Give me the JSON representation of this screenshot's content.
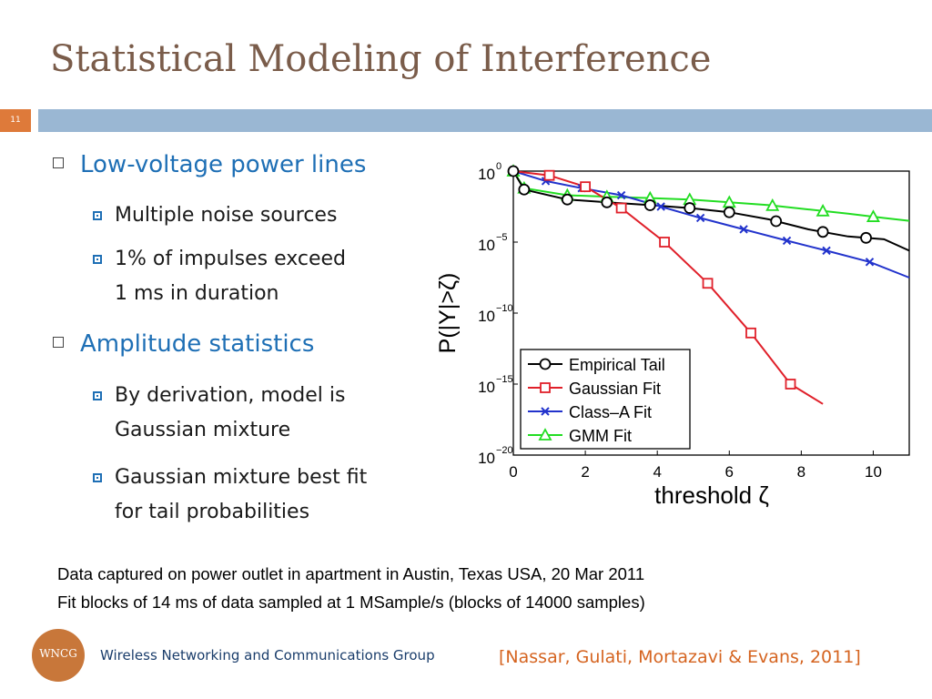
{
  "slide": {
    "title": "Statistical Modeling of Interference",
    "number": "11",
    "bullets": [
      {
        "text": "Low-voltage power lines",
        "sub": [
          "Multiple noise sources",
          "1% of impulses exceed\n1 ms in duration"
        ]
      },
      {
        "text": "Amplitude statistics",
        "sub": [
          "By derivation, model is\nGaussian mixture",
          "Gaussian mixture best fit\nfor tail probabilities"
        ]
      }
    ],
    "note_lines": [
      "Data captured on power outlet in apartment in Austin, Texas USA, 20 Mar 2011",
      "Fit blocks of 14 ms of data sampled at 1 MSample/s (blocks of 14000 samples)"
    ],
    "footer_logo": "WNCG",
    "footer_org": "Wireless Networking and Communications Group",
    "citation": "[Nassar, Gulati, Mortazavi & Evans, 2011]"
  },
  "chart_data": {
    "type": "line",
    "xlabel": "threshold ζ",
    "ylabel": "P(|Y|>ζ)",
    "xlim": [
      0,
      11
    ],
    "ylim_exponent": [
      -20,
      0
    ],
    "y_scale": "log",
    "xticks": [
      "0",
      "2",
      "4",
      "6",
      "8",
      "10"
    ],
    "yticks": [
      {
        "exp": 0,
        "label": "0"
      },
      {
        "exp": -5,
        "label": "−5"
      },
      {
        "exp": -10,
        "label": "−10"
      },
      {
        "exp": -15,
        "label": "−15"
      },
      {
        "exp": -20,
        "label": "−20"
      }
    ],
    "legend_position": "lower-left",
    "series": [
      {
        "name": "Empirical Tail",
        "color": "#000000",
        "marker": "circle",
        "x": [
          0,
          0.3,
          1.5,
          2.6,
          3.8,
          4.9,
          6,
          7.1,
          8.2,
          9.3,
          10.3,
          11
        ],
        "log10_y": [
          0,
          -1.3,
          -2.0,
          -2.2,
          -2.4,
          -2.6,
          -2.9,
          -3.4,
          -4.1,
          -4.6,
          -4.8,
          -5.6
        ],
        "marker_x": [
          0,
          0.3,
          1.5,
          2.6,
          3.8,
          4.9,
          6,
          7.3,
          8.6,
          9.8
        ]
      },
      {
        "name": "Gaussian Fit",
        "color": "#e0202a",
        "marker": "square",
        "x": [
          0,
          1.0,
          2.0,
          3.0,
          4.2,
          5.4,
          6.6,
          7.7,
          8.6
        ],
        "log10_y": [
          0,
          -0.3,
          -1.1,
          -2.6,
          -5.0,
          -7.9,
          -11.4,
          -15.0,
          -16.4
        ],
        "marker_x": [
          1.0,
          2.0,
          3.0,
          4.2,
          5.4,
          6.6,
          7.7
        ]
      },
      {
        "name": "Class–A Fit",
        "color": "#2233cc",
        "marker": "x",
        "x": [
          0,
          0.9,
          1.9,
          3.0,
          4.1,
          5.2,
          6.4,
          7.6,
          8.7,
          9.9,
          11
        ],
        "log10_y": [
          0,
          -0.7,
          -1.2,
          -1.7,
          -2.5,
          -3.3,
          -4.1,
          -4.9,
          -5.6,
          -6.4,
          -7.5
        ],
        "marker_x": [
          0.9,
          1.9,
          3.0,
          4.1,
          5.2,
          6.4,
          7.6,
          8.7,
          9.9
        ]
      },
      {
        "name": "GMM Fit",
        "color": "#22dd22",
        "marker": "triangle",
        "x": [
          0,
          0.3,
          1.5,
          2.6,
          3.8,
          4.9,
          6,
          7.1,
          8.2,
          9.3,
          10.3,
          11
        ],
        "log10_y": [
          0,
          -1.2,
          -1.7,
          -1.8,
          -1.9,
          -2.0,
          -2.2,
          -2.4,
          -2.7,
          -3.0,
          -3.3,
          -3.5
        ],
        "marker_x": [
          0,
          0.3,
          1.5,
          2.6,
          3.8,
          4.9,
          6,
          7.2,
          8.6,
          10
        ]
      }
    ]
  }
}
